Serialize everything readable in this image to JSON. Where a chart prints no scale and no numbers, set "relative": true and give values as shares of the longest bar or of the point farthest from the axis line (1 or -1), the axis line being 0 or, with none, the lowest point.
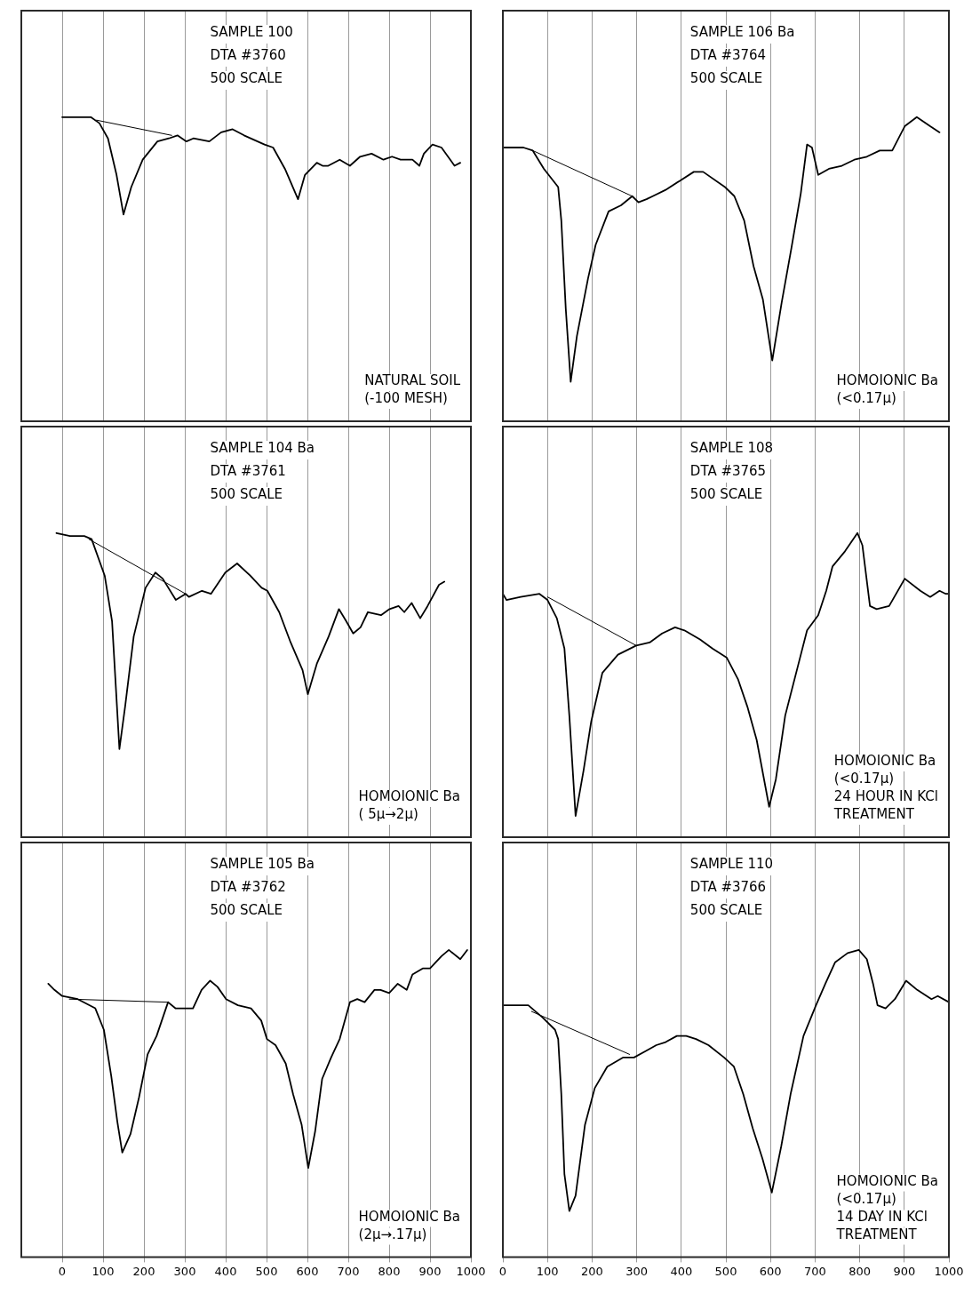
{
  "chart_data": [
    {
      "type": "line",
      "title": "SAMPLE 100\nDTA #3760\n500 SCALE",
      "annotations": [
        "NATURAL SOIL",
        "(-100 MESH)"
      ],
      "relative": true,
      "grid": "x",
      "marker": "none",
      "tick_labels": false,
      "xlim": [
        -100,
        1000
      ],
      "xticks": [
        0,
        100,
        200,
        300,
        400,
        500,
        600,
        700,
        800,
        900,
        1000
      ],
      "series": [
        {
          "color": "#000000",
          "x": [
            0,
            70,
            91,
            112,
            133,
            150,
            169,
            197,
            233,
            261,
            282,
            304,
            321,
            360,
            389,
            417,
            445,
            495,
            516,
            545,
            577,
            594,
            623,
            637,
            651,
            679,
            704,
            729,
            757,
            786,
            807,
            828,
            857,
            874,
            885,
            906,
            928,
            960,
            974
          ],
          "values": [
            1,
            1,
            0.98,
            0.93,
            0.81,
            0.68,
            0.77,
            0.86,
            0.92,
            0.93,
            0.94,
            0.92,
            0.93,
            0.92,
            0.95,
            0.96,
            0.94,
            0.91,
            0.9,
            0.83,
            0.73,
            0.81,
            0.85,
            0.84,
            0.84,
            0.86,
            0.84,
            0.87,
            0.88,
            0.86,
            0.87,
            0.86,
            0.86,
            0.84,
            0.88,
            0.91,
            0.9,
            0.84,
            0.85
          ]
        },
        {
          "type": "line",
          "color": "#000000",
          "x": [
            84,
            268
          ],
          "values": [
            0.99,
            0.94
          ]
        }
      ]
    },
    {
      "type": "line",
      "title": "SAMPLE 106 Ba\nDTA #3764\n500 SCALE",
      "annotations": [
        "HOMOIONIC Ba",
        "(<0.17μ)"
      ],
      "relative": true,
      "grid": "x",
      "marker": "none",
      "tick_labels": false,
      "xlim": [
        0,
        1000
      ],
      "xticks": [
        0,
        100,
        200,
        300,
        400,
        500,
        600,
        700,
        800,
        900,
        1000
      ],
      "series": [
        {
          "color": "#000000",
          "x": [
            0,
            46,
            67,
            92,
            124,
            131,
            141,
            152,
            166,
            191,
            208,
            237,
            265,
            290,
            304,
            322,
            336,
            364,
            396,
            428,
            449,
            498,
            519,
            541,
            562,
            583,
            604,
            625,
            647,
            668,
            682,
            693,
            707,
            731,
            760,
            788,
            816,
            845,
            873,
            901,
            928,
            958,
            979
          ],
          "values": [
            0.9,
            0.9,
            0.89,
            0.83,
            0.77,
            0.66,
            0.37,
            0.13,
            0.28,
            0.47,
            0.58,
            0.69,
            0.71,
            0.74,
            0.72,
            0.73,
            0.74,
            0.76,
            0.79,
            0.82,
            0.82,
            0.77,
            0.74,
            0.66,
            0.51,
            0.4,
            0.2,
            0.39,
            0.57,
            0.75,
            0.91,
            0.9,
            0.81,
            0.83,
            0.84,
            0.86,
            0.87,
            0.89,
            0.89,
            0.97,
            1,
            0.97,
            0.95
          ]
        },
        {
          "type": "line",
          "color": "#000000",
          "x": [
            67,
            290
          ],
          "values": [
            0.89,
            0.74
          ]
        }
      ]
    },
    {
      "type": "line",
      "title": "SAMPLE 104 Ba\nDTA #3761\n500 SCALE",
      "annotations": [
        "HOMOIONIC Ba",
        "( 5μ→2μ)"
      ],
      "relative": true,
      "grid": "x",
      "marker": "none",
      "tick_labels": false,
      "xlim": [
        -100,
        1000
      ],
      "xticks": [
        0,
        100,
        200,
        300,
        400,
        500,
        600,
        700,
        800,
        900,
        1000
      ],
      "series": [
        {
          "color": "#000000",
          "x": [
            -14,
            19,
            54,
            72,
            104,
            122,
            140,
            154,
            175,
            204,
            228,
            246,
            278,
            302,
            310,
            342,
            364,
            399,
            428,
            460,
            488,
            502,
            531,
            559,
            588,
            601,
            623,
            652,
            677,
            695,
            712,
            730,
            748,
            780,
            801,
            823,
            837,
            855,
            876,
            894,
            922,
            935
          ],
          "values": [
            1,
            0.99,
            0.99,
            0.98,
            0.86,
            0.71,
            0.29,
            0.43,
            0.66,
            0.82,
            0.87,
            0.85,
            0.78,
            0.8,
            0.79,
            0.81,
            0.8,
            0.87,
            0.9,
            0.86,
            0.82,
            0.81,
            0.74,
            0.64,
            0.55,
            0.47,
            0.57,
            0.66,
            0.75,
            0.71,
            0.67,
            0.69,
            0.74,
            0.73,
            0.75,
            0.76,
            0.74,
            0.77,
            0.72,
            0.76,
            0.83,
            0.84
          ]
        },
        {
          "type": "line",
          "color": "#000000",
          "x": [
            65,
            302
          ],
          "values": [
            0.98,
            0.8
          ]
        }
      ]
    },
    {
      "type": "line",
      "title": "SAMPLE 108\nDTA #3765\n500 SCALE",
      "annotations": [
        "HOMOIONIC Ba",
        "(<0.17μ)",
        "24 HOUR IN KCl",
        "TREATMENT"
      ],
      "relative": true,
      "grid": "x",
      "marker": "none",
      "tick_labels": false,
      "xlim": [
        0,
        1000
      ],
      "xticks": [
        0,
        100,
        200,
        300,
        400,
        500,
        600,
        700,
        800,
        900,
        1000
      ],
      "series": [
        {
          "color": "#000000",
          "x": [
            0,
            8,
            40,
            82,
            100,
            121,
            138,
            149,
            163,
            181,
            198,
            223,
            258,
            299,
            329,
            357,
            386,
            407,
            442,
            470,
            502,
            527,
            548,
            569,
            597,
            612,
            633,
            661,
            682,
            707,
            725,
            739,
            767,
            795,
            806,
            823,
            838,
            866,
            901,
            936,
            958,
            979,
            993,
            1000
          ],
          "values": [
            0.8,
            0.78,
            0.79,
            0.8,
            0.78,
            0.72,
            0.62,
            0.4,
            0.07,
            0.22,
            0.38,
            0.54,
            0.6,
            0.63,
            0.64,
            0.67,
            0.69,
            0.68,
            0.65,
            0.62,
            0.59,
            0.52,
            0.43,
            0.32,
            0.1,
            0.19,
            0.4,
            0.56,
            0.68,
            0.73,
            0.81,
            0.89,
            0.94,
            1,
            0.96,
            0.76,
            0.75,
            0.76,
            0.85,
            0.81,
            0.79,
            0.81,
            0.8,
            0.8
          ]
        },
        {
          "type": "line",
          "color": "#000000",
          "x": [
            100,
            299
          ],
          "values": [
            0.79,
            0.63
          ]
        }
      ]
    },
    {
      "type": "line",
      "title": "SAMPLE 105 Ba\nDTA #3762\n500 SCALE",
      "annotations": [
        "HOMOIONIC Ba",
        "(2μ→.17μ)"
      ],
      "relative": true,
      "grid": "x",
      "marker": "none",
      "xlim": [
        -100,
        1000
      ],
      "xticks": [
        0,
        100,
        200,
        300,
        400,
        500,
        600,
        700,
        800,
        900,
        1000
      ],
      "series": [
        {
          "color": "#000000",
          "x": [
            -34,
            -19,
            0,
            38,
            81,
            102,
            120,
            135,
            147,
            167,
            188,
            209,
            231,
            259,
            277,
            302,
            320,
            341,
            362,
            380,
            401,
            430,
            462,
            487,
            501,
            522,
            547,
            565,
            586,
            602,
            619,
            636,
            658,
            679,
            704,
            722,
            740,
            764,
            779,
            800,
            821,
            843,
            857,
            882,
            900,
            928,
            946,
            974,
            991
          ],
          "values": [
            0.89,
            0.87,
            0.85,
            0.84,
            0.81,
            0.74,
            0.59,
            0.44,
            0.34,
            0.4,
            0.52,
            0.66,
            0.72,
            0.83,
            0.81,
            0.81,
            0.81,
            0.87,
            0.9,
            0.88,
            0.84,
            0.82,
            0.81,
            0.77,
            0.71,
            0.69,
            0.63,
            0.53,
            0.43,
            0.29,
            0.41,
            0.58,
            0.65,
            0.71,
            0.83,
            0.84,
            0.83,
            0.87,
            0.87,
            0.86,
            0.89,
            0.87,
            0.92,
            0.94,
            0.94,
            0.98,
            1,
            0.97,
            1
          ]
        },
        {
          "type": "line",
          "color": "#000000",
          "x": [
            17,
            259
          ],
          "values": [
            0.84,
            0.83
          ]
        }
      ]
    },
    {
      "type": "line",
      "title": "SAMPLE 110\nDTA #3766\n500 SCALE",
      "annotations": [
        "HOMOIONIC Ba",
        "(<0.17μ)",
        "14 DAY IN KCl",
        "TREATMENT"
      ],
      "relative": true,
      "grid": "x",
      "marker": "none",
      "xlim": [
        0,
        1000
      ],
      "xticks": [
        0,
        100,
        200,
        300,
        400,
        500,
        600,
        700,
        800,
        900,
        1000
      ],
      "series": [
        {
          "color": "#000000",
          "x": [
            0,
            57,
            89,
            117,
            124,
            131,
            138,
            149,
            163,
            184,
            206,
            234,
            270,
            294,
            319,
            344,
            365,
            390,
            411,
            433,
            461,
            496,
            518,
            539,
            560,
            582,
            603,
            624,
            645,
            674,
            702,
            723,
            745,
            773,
            798,
            816,
            830,
            840,
            858,
            879,
            904,
            929,
            961,
            975,
            1000
          ],
          "values": [
            0.82,
            0.82,
            0.78,
            0.74,
            0.71,
            0.53,
            0.27,
            0.15,
            0.2,
            0.43,
            0.55,
            0.62,
            0.65,
            0.65,
            0.67,
            0.69,
            0.7,
            0.72,
            0.72,
            0.71,
            0.69,
            0.65,
            0.62,
            0.53,
            0.42,
            0.32,
            0.21,
            0.36,
            0.53,
            0.72,
            0.82,
            0.89,
            0.96,
            0.99,
            1,
            0.97,
            0.89,
            0.82,
            0.81,
            0.84,
            0.9,
            0.87,
            0.84,
            0.85,
            0.83
          ]
        },
        {
          "type": "line",
          "color": "#000000",
          "x": [
            64,
            284
          ],
          "values": [
            0.8,
            0.66
          ]
        }
      ]
    }
  ]
}
